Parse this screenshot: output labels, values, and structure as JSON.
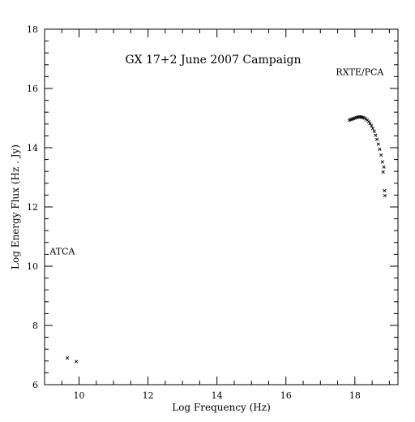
{
  "chart_data": {
    "type": "scatter",
    "title": "GX 17+2 June 2007 Campaign",
    "xlabel": "Log Frequency (Hz)",
    "ylabel": "Log Energy Flux (Hz . Jy)",
    "xlim": [
      9.0,
      19.25
    ],
    "ylim": [
      6,
      18
    ],
    "x_ticks": [
      10,
      12,
      14,
      16,
      18
    ],
    "y_ticks": [
      6,
      8,
      10,
      12,
      14,
      16,
      18
    ],
    "x_tick_labels": [
      "10",
      "12",
      "14",
      "16",
      "18"
    ],
    "y_tick_labels": [
      "6",
      "8",
      "10",
      "12",
      "14",
      "16",
      "18"
    ],
    "x_minor_step": 0.5,
    "y_minor_step": 0.4,
    "grid": false,
    "legend": "none",
    "marker": "x",
    "annotations": [
      {
        "text": "ATCA",
        "x": 9.15,
        "y": 10.4
      },
      {
        "text": "RXTE/PCA",
        "x": 17.45,
        "y": 16.45
      }
    ],
    "series": [
      {
        "points": [
          [
            9.66,
            6.9
          ],
          [
            9.92,
            6.78
          ],
          [
            17.84,
            14.93
          ],
          [
            17.88,
            14.95
          ],
          [
            17.92,
            14.97
          ],
          [
            17.96,
            14.98
          ],
          [
            18.0,
            15.0
          ],
          [
            18.04,
            15.02
          ],
          [
            18.08,
            15.03
          ],
          [
            18.12,
            15.04
          ],
          [
            18.16,
            15.04
          ],
          [
            18.2,
            15.03
          ],
          [
            18.24,
            15.02
          ],
          [
            18.28,
            15.0
          ],
          [
            18.32,
            14.97
          ],
          [
            18.36,
            14.93
          ],
          [
            18.4,
            14.88
          ],
          [
            18.44,
            14.82
          ],
          [
            18.48,
            14.74
          ],
          [
            18.52,
            14.65
          ],
          [
            18.56,
            14.55
          ],
          [
            18.6,
            14.42
          ],
          [
            18.64,
            14.28
          ],
          [
            18.68,
            14.12
          ],
          [
            18.72,
            13.95
          ],
          [
            18.76,
            13.75
          ],
          [
            18.8,
            13.52
          ],
          [
            18.84,
            13.35
          ],
          [
            18.82,
            13.18
          ],
          [
            18.86,
            12.55
          ],
          [
            18.87,
            12.38
          ]
        ]
      }
    ]
  }
}
